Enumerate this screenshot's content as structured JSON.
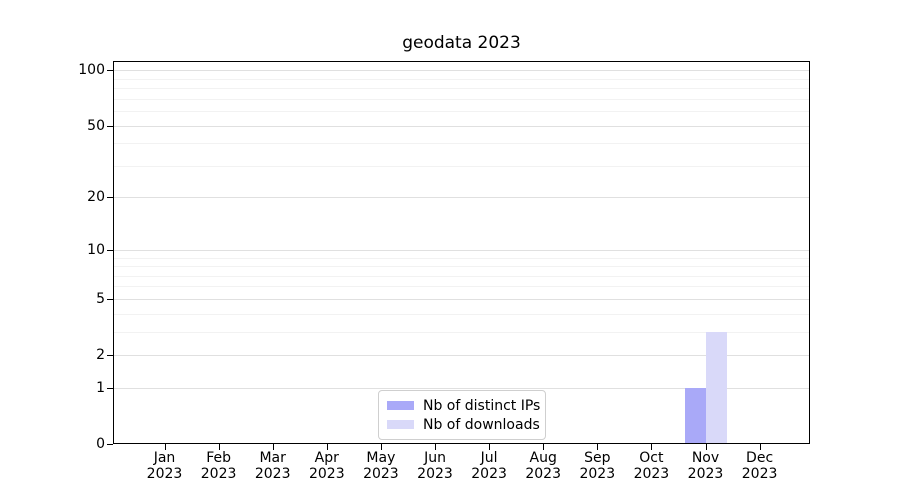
{
  "chart_data": {
    "type": "bar",
    "title": "geodata 2023",
    "categories": [
      "Jan 2023",
      "Feb 2023",
      "Mar 2023",
      "Apr 2023",
      "May 2023",
      "Jun 2023",
      "Jul 2023",
      "Aug 2023",
      "Sep 2023",
      "Oct 2023",
      "Nov 2023",
      "Dec 2023"
    ],
    "series": [
      {
        "name": "Nb of distinct IPs",
        "color": "#a9a9f8",
        "values": [
          0,
          0,
          0,
          0,
          0,
          0,
          0,
          0,
          0,
          0,
          1,
          0
        ]
      },
      {
        "name": "Nb of downloads",
        "color": "#d9d9f9",
        "values": [
          0,
          0,
          0,
          0,
          0,
          0,
          0,
          0,
          0,
          0,
          3,
          0
        ]
      }
    ],
    "xlabel": "",
    "ylabel": "",
    "yscale": "log1p",
    "ylim": [
      0,
      112
    ],
    "yticks": [
      0,
      1,
      2,
      5,
      10,
      20,
      50,
      100
    ],
    "yticks_minor": [
      3,
      4,
      6,
      7,
      8,
      9,
      30,
      40,
      60,
      70,
      80,
      90
    ],
    "grid": true,
    "legend": {
      "position": "lower center"
    }
  }
}
